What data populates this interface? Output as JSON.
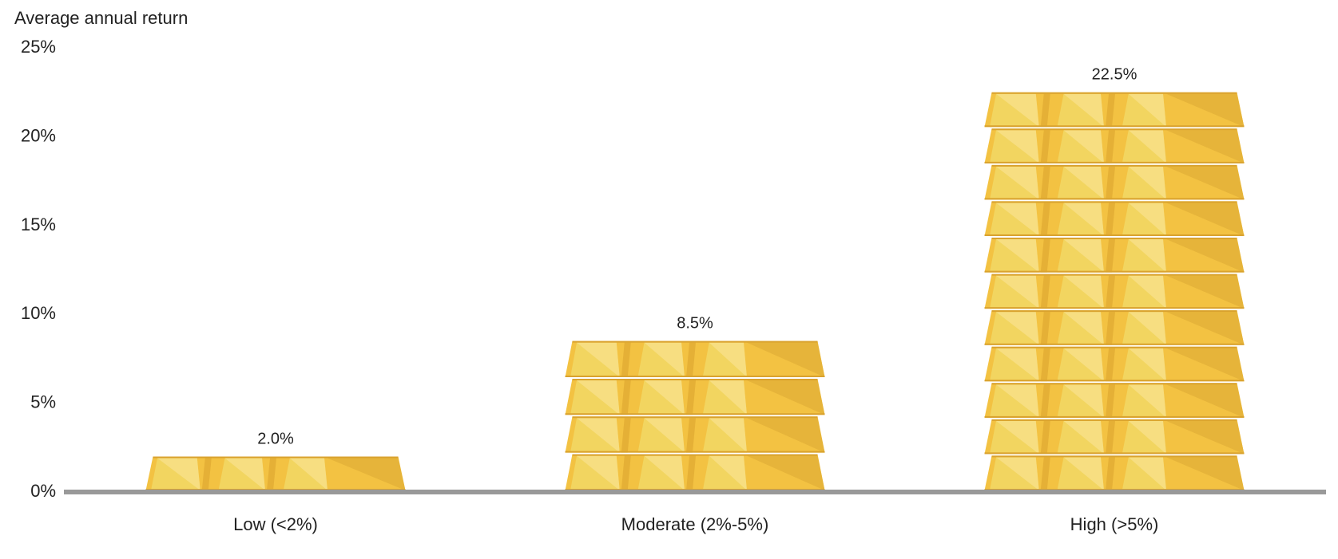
{
  "chart_data": {
    "type": "bar",
    "ylabel": "Average annual return",
    "xlabel": "",
    "title": "",
    "categories": [
      "Low (<2%)",
      "Moderate (2%-5%)",
      "High (>5%)"
    ],
    "values": [
      2.0,
      8.5,
      22.5
    ],
    "value_labels": [
      "2.0%",
      "8.5%",
      "22.5%"
    ],
    "ylim": [
      0,
      25
    ],
    "yticks": [
      0,
      5,
      10,
      15,
      20,
      25
    ],
    "ytick_labels": [
      "0%",
      "5%",
      "10%",
      "15%",
      "20%",
      "25%"
    ],
    "grid": false,
    "legend": "none",
    "bar_style": "stacked gold bars",
    "colors": {
      "gold_light": "#F7E08A",
      "gold_main": "#F2D560",
      "gold_mid": "#F3C242",
      "gold_dark": "#E6B43A",
      "gold_edge": "#D9A22E",
      "axis": "#999999",
      "text": "#222222"
    }
  }
}
